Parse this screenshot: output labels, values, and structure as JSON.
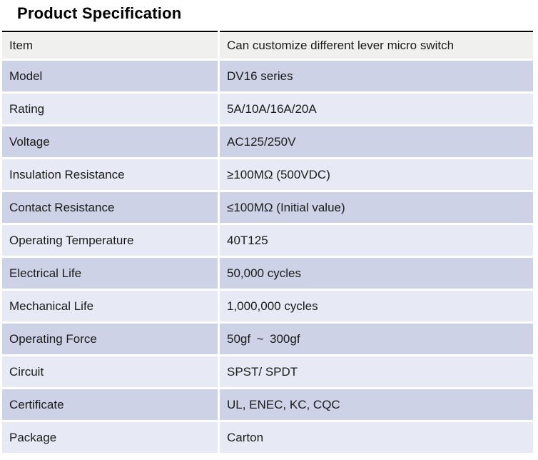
{
  "page": {
    "title": "Product Specification"
  },
  "table": {
    "header": {
      "key": "Item",
      "value": "Can customize different lever micro switch"
    },
    "rows": [
      {
        "key": "Model",
        "value": "DV16 series"
      },
      {
        "key": "Rating",
        "value": "5A/10A/16A/20A"
      },
      {
        "key": "Voltage",
        "value": "AC125/250V"
      },
      {
        "key": "Insulation Resistance",
        "value": "≥100MΩ (500VDC)"
      },
      {
        "key": "Contact Resistance",
        "value": "≤100MΩ (Initial value)"
      },
      {
        "key": "Operating Temperature",
        "value": "40T125"
      },
      {
        "key": "Electrical Life",
        "value": "50,000 cycles"
      },
      {
        "key": "Mechanical Life",
        "value": "1,000,000 cycles"
      },
      {
        "key": "Operating Force",
        "value": "50gf ~ 300gf"
      },
      {
        "key": "Circuit",
        "value": "SPST/ SPDT"
      },
      {
        "key": "Certificate",
        "value": "UL, ENEC, KC, CQC"
      },
      {
        "key": "Package",
        "value": "Carton"
      }
    ],
    "colors": {
      "row_dark": "#cdd2e6",
      "row_light": "#e7eaf4",
      "header_gray": "#f0f0ef",
      "top_border": "#000000"
    }
  }
}
